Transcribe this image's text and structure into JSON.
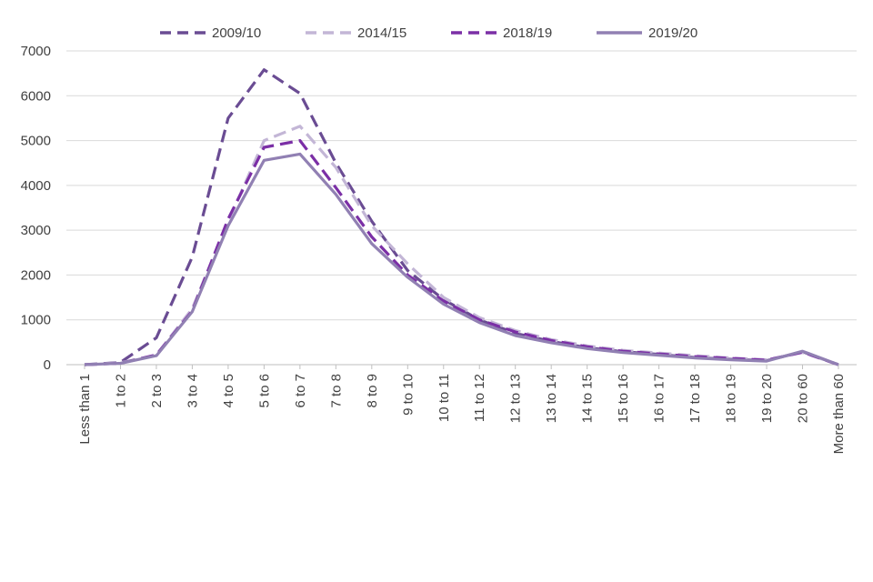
{
  "chart_data": {
    "type": "line",
    "categories": [
      "Less than 1",
      "1 to 2",
      "2 to 3",
      "3 to 4",
      "4 to 5",
      "5 to 6",
      "6 to 7",
      "7 to 8",
      "8 to 9",
      "9 to 10",
      "10 to 11",
      "11 to 12",
      "12 to 13",
      "13 to 14",
      "14 to 15",
      "15 to 16",
      "16 to 17",
      "17 to 18",
      "18 to 19",
      "19 to 20",
      "20 to 60",
      "More than 60"
    ],
    "ylim": [
      0,
      7000
    ],
    "yticks": [
      0,
      1000,
      2000,
      3000,
      4000,
      5000,
      6000,
      7000
    ],
    "ytick_labels": [
      "0",
      "1000",
      "2000",
      "3000",
      "4000",
      "5000",
      "6000",
      "7000"
    ],
    "grid": true,
    "legend_position": "top",
    "series": [
      {
        "name": "2009/10",
        "color": "#6a4c93",
        "style": "dashed",
        "values": [
          0,
          50,
          600,
          2400,
          5500,
          6580,
          6050,
          4500,
          3200,
          2100,
          1450,
          1000,
          700,
          520,
          380,
          290,
          230,
          160,
          120,
          90,
          290,
          0
        ]
      },
      {
        "name": "2014/15",
        "color": "#c3b6d6",
        "style": "dashed",
        "values": [
          0,
          40,
          220,
          1250,
          3200,
          5000,
          5320,
          4400,
          3100,
          2250,
          1500,
          1050,
          760,
          560,
          420,
          320,
          260,
          200,
          150,
          110,
          270,
          0
        ]
      },
      {
        "name": "2018/19",
        "color": "#7b2fa6",
        "style": "dashed",
        "values": [
          0,
          30,
          220,
          1200,
          3250,
          4850,
          5000,
          3950,
          2850,
          2000,
          1420,
          1000,
          730,
          540,
          400,
          300,
          240,
          180,
          140,
          100,
          280,
          0
        ]
      },
      {
        "name": "2019/20",
        "color": "#9180b3",
        "style": "solid",
        "values": [
          0,
          30,
          200,
          1180,
          3100,
          4560,
          4700,
          3800,
          2700,
          1950,
          1350,
          940,
          650,
          490,
          360,
          270,
          210,
          150,
          110,
          80,
          300,
          0
        ]
      }
    ]
  }
}
